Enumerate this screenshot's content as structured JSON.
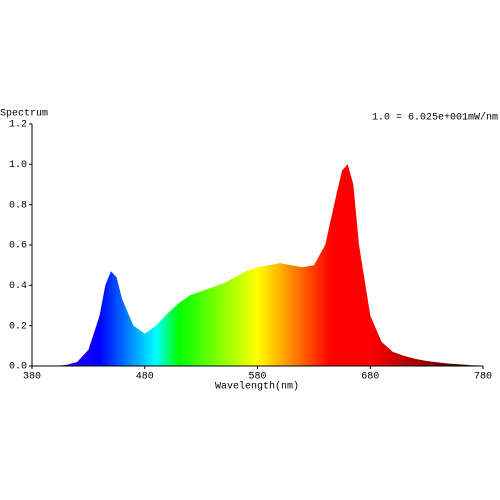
{
  "chart_data": {
    "type": "area",
    "ylabel": "Spectrum",
    "xlabel": "Wavelength(nm)",
    "annotation": "1.0 = 6.025e+001mW/nm",
    "x": [
      380,
      390,
      400,
      410,
      420,
      430,
      440,
      445,
      450,
      455,
      460,
      470,
      480,
      490,
      500,
      510,
      520,
      530,
      540,
      550,
      560,
      570,
      580,
      590,
      600,
      610,
      620,
      630,
      640,
      650,
      655,
      660,
      665,
      670,
      680,
      690,
      700,
      710,
      720,
      730,
      740,
      750,
      760,
      770,
      780
    ],
    "values": [
      0,
      0,
      0,
      0.005,
      0.02,
      0.08,
      0.25,
      0.4,
      0.47,
      0.44,
      0.33,
      0.2,
      0.16,
      0.2,
      0.26,
      0.31,
      0.35,
      0.37,
      0.39,
      0.41,
      0.44,
      0.47,
      0.49,
      0.5,
      0.51,
      0.5,
      0.49,
      0.5,
      0.6,
      0.85,
      0.97,
      1,
      0.9,
      0.6,
      0.25,
      0.12,
      0.07,
      0.05,
      0.035,
      0.025,
      0.018,
      0.012,
      0.008,
      0.004,
      0.002
    ],
    "xlim": [
      380,
      780
    ],
    "ylim": [
      0,
      1.2
    ],
    "xticks": [
      380,
      480,
      580,
      680,
      780
    ],
    "yticks": [
      {
        "value": 0,
        "label": "0.0"
      },
      0.2,
      0.4,
      0.6,
      0.8,
      {
        "value": 1,
        "label": "1.0"
      },
      1.2
    ]
  }
}
